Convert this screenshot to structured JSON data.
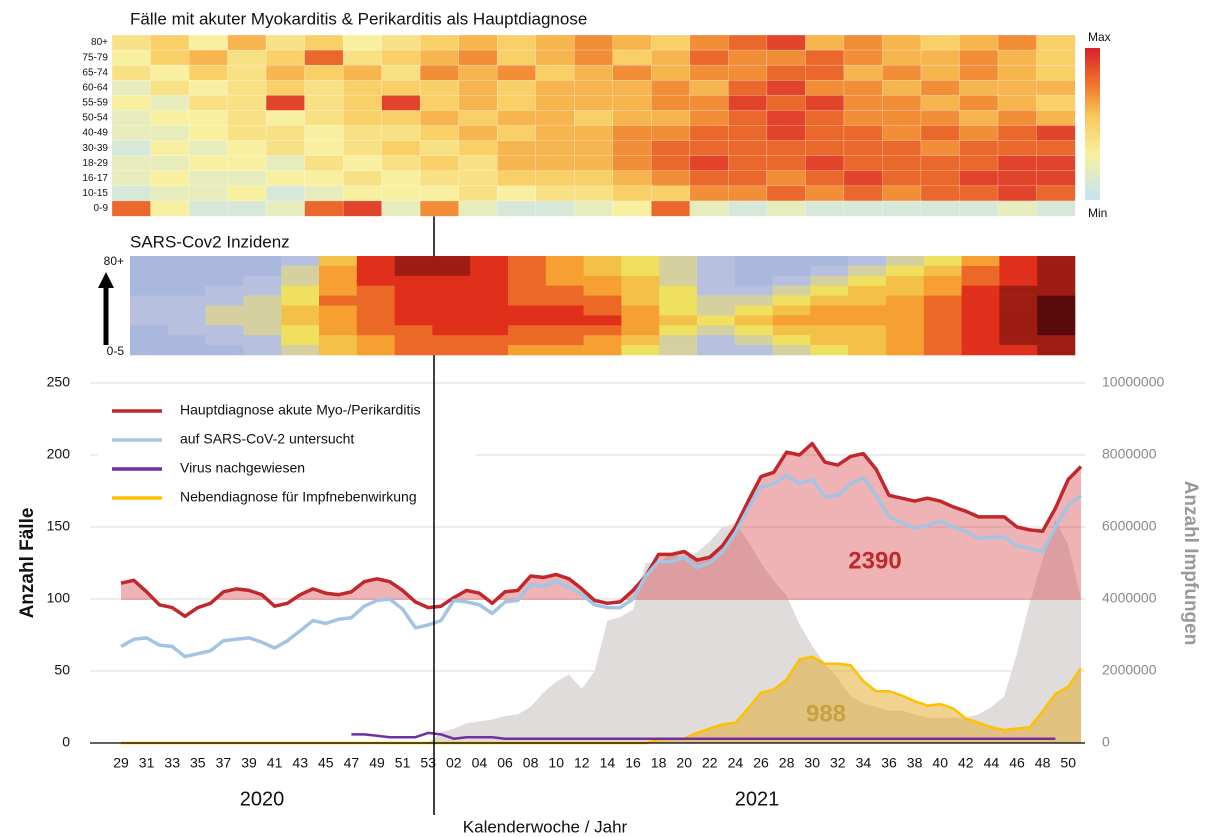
{
  "chart_data": [
    {
      "type": "heatmap",
      "title": "Fälle mit akuter Myokarditis & Perikarditis als Hauptdiagnose",
      "row_labels": [
        "80+",
        "75-79",
        "65-74",
        "60-64",
        "55-59",
        "50-54",
        "40-49",
        "30-39",
        "18-29",
        "16-17",
        "10-15",
        "0-9"
      ],
      "colorbar_labels": [
        "Max",
        "Min"
      ],
      "zlim": [
        0,
        10
      ],
      "values": [
        [
          4,
          5,
          3,
          6,
          4,
          5,
          3,
          4,
          5,
          6,
          5,
          6,
          7,
          6,
          5,
          7,
          8,
          9,
          6,
          7,
          6,
          5,
          6,
          7,
          5
        ],
        [
          3,
          5,
          6,
          4,
          5,
          8,
          4,
          5,
          6,
          7,
          5,
          6,
          7,
          5,
          6,
          8,
          7,
          7,
          8,
          7,
          6,
          6,
          7,
          6,
          5
        ],
        [
          4,
          3,
          5,
          4,
          6,
          5,
          6,
          4,
          7,
          6,
          7,
          5,
          6,
          7,
          6,
          7,
          7,
          8,
          8,
          6,
          7,
          6,
          7,
          6,
          5
        ],
        [
          2,
          4,
          3,
          4,
          5,
          4,
          5,
          5,
          5,
          6,
          5,
          6,
          6,
          6,
          7,
          6,
          8,
          9,
          7,
          7,
          6,
          7,
          6,
          6,
          6
        ],
        [
          3,
          2,
          4,
          4,
          9,
          4,
          5,
          9,
          5,
          6,
          5,
          6,
          6,
          6,
          7,
          7,
          9,
          8,
          9,
          7,
          7,
          6,
          7,
          6,
          5
        ],
        [
          2,
          3,
          3,
          4,
          3,
          4,
          5,
          5,
          6,
          5,
          6,
          6,
          5,
          6,
          6,
          7,
          8,
          9,
          8,
          7,
          7,
          7,
          6,
          7,
          6
        ],
        [
          2,
          2,
          3,
          4,
          4,
          3,
          4,
          4,
          5,
          6,
          5,
          6,
          6,
          7,
          7,
          8,
          8,
          9,
          8,
          8,
          7,
          8,
          7,
          8,
          9
        ],
        [
          1,
          3,
          2,
          3,
          4,
          3,
          4,
          5,
          4,
          5,
          6,
          6,
          6,
          7,
          8,
          8,
          8,
          8,
          8,
          8,
          8,
          7,
          8,
          8,
          8
        ],
        [
          2,
          2,
          3,
          3,
          2,
          4,
          3,
          4,
          5,
          4,
          6,
          6,
          6,
          7,
          8,
          9,
          8,
          8,
          9,
          8,
          8,
          8,
          8,
          9,
          9
        ],
        [
          2,
          3,
          2,
          2,
          3,
          3,
          4,
          3,
          4,
          4,
          5,
          5,
          5,
          6,
          7,
          8,
          8,
          7,
          8,
          9,
          8,
          8,
          9,
          9,
          9
        ],
        [
          1,
          2,
          2,
          3,
          1,
          2,
          3,
          3,
          3,
          4,
          3,
          4,
          4,
          5,
          5,
          7,
          7,
          8,
          7,
          8,
          7,
          8,
          8,
          9,
          8
        ],
        [
          8,
          3,
          1,
          1,
          2,
          8,
          9,
          2,
          7,
          2,
          1,
          1,
          2,
          3,
          8,
          2,
          1,
          2,
          1,
          1,
          1,
          1,
          1,
          2,
          1
        ]
      ]
    },
    {
      "type": "heatmap",
      "title": "SARS-Cov2 Inzidenz",
      "row_labels": [
        "80+",
        "0-5"
      ],
      "zlim": [
        0,
        10
      ],
      "values": [
        [
          1,
          1,
          1,
          1,
          2,
          5,
          8,
          9,
          9,
          8,
          7,
          6,
          5,
          4,
          3,
          2,
          1,
          1,
          1,
          2,
          3,
          4,
          6,
          8,
          9
        ],
        [
          1,
          1,
          1,
          1,
          3,
          6,
          8,
          9,
          9,
          8,
          7,
          6,
          5,
          4,
          3,
          2,
          1,
          1,
          2,
          3,
          4,
          5,
          7,
          8,
          9
        ],
        [
          1,
          1,
          1,
          2,
          3,
          6,
          8,
          8,
          8,
          8,
          7,
          6,
          6,
          5,
          3,
          2,
          1,
          2,
          3,
          4,
          5,
          6,
          7,
          8,
          9
        ],
        [
          1,
          1,
          2,
          2,
          4,
          6,
          7,
          8,
          8,
          8,
          7,
          7,
          6,
          5,
          4,
          2,
          2,
          3,
          4,
          5,
          5,
          6,
          8,
          9,
          9
        ],
        [
          2,
          2,
          2,
          3,
          4,
          7,
          7,
          8,
          8,
          8,
          7,
          7,
          7,
          5,
          4,
          3,
          3,
          4,
          5,
          5,
          6,
          7,
          8,
          9,
          10
        ],
        [
          2,
          2,
          3,
          3,
          5,
          6,
          7,
          8,
          8,
          8,
          8,
          8,
          7,
          6,
          4,
          3,
          4,
          5,
          6,
          6,
          6,
          7,
          8,
          9,
          10
        ],
        [
          2,
          2,
          3,
          3,
          5,
          6,
          7,
          8,
          8,
          8,
          8,
          8,
          8,
          6,
          5,
          4,
          5,
          6,
          6,
          6,
          6,
          7,
          8,
          9,
          10
        ],
        [
          1,
          2,
          2,
          3,
          4,
          6,
          7,
          7,
          8,
          8,
          7,
          7,
          7,
          6,
          4,
          3,
          4,
          5,
          5,
          5,
          6,
          7,
          8,
          9,
          10
        ],
        [
          1,
          1,
          2,
          2,
          4,
          5,
          6,
          7,
          7,
          7,
          7,
          7,
          6,
          5,
          3,
          2,
          3,
          4,
          5,
          5,
          6,
          7,
          8,
          9,
          9
        ],
        [
          1,
          1,
          1,
          2,
          3,
          5,
          6,
          7,
          7,
          7,
          6,
          6,
          6,
          4,
          3,
          2,
          2,
          3,
          4,
          5,
          6,
          7,
          8,
          8,
          9
        ]
      ]
    },
    {
      "type": "line",
      "ylabel": "Anzahl Fälle",
      "y2label": "Anzahl Impfungen",
      "xlabel": "Kalenderwoche / Jahr",
      "year_labels": [
        "2020",
        "2021"
      ],
      "ylim": [
        0,
        250
      ],
      "yticks": [
        0,
        50,
        100,
        150,
        200,
        250
      ],
      "y2lim": [
        0,
        10000000
      ],
      "y2ticks": [
        0,
        2000000,
        4000000,
        6000000,
        8000000,
        10000000
      ],
      "grid": true,
      "legend": "upper left",
      "categories": [
        "29",
        null,
        "31",
        null,
        "33",
        null,
        "35",
        null,
        "37",
        null,
        "39",
        null,
        "41",
        null,
        "43",
        null,
        "45",
        null,
        "47",
        null,
        "49",
        null,
        "51",
        null,
        "53",
        null,
        "02",
        null,
        "04",
        null,
        "06",
        null,
        "08",
        null,
        "10",
        null,
        "12",
        null,
        "14",
        null,
        "16",
        null,
        "18",
        null,
        "20",
        null,
        "22",
        null,
        "24",
        null,
        "26",
        null,
        "28",
        null,
        "30",
        null,
        "32",
        null,
        "34",
        null,
        "36",
        null,
        "38",
        null,
        "40",
        null,
        "42",
        null,
        "44",
        null,
        "46",
        null,
        "48",
        null,
        "50",
        null
      ],
      "annotations": [
        {
          "text": "2390",
          "series": 0
        },
        {
          "text": "988",
          "series": 3
        }
      ],
      "series": [
        {
          "name": "Hauptdiagnose akute Myo-/Perikarditis",
          "color": "#c0282d",
          "values": [
            111,
            113,
            105,
            96,
            94,
            88,
            94,
            97,
            105,
            107,
            106,
            103,
            95,
            97,
            103,
            107,
            104,
            103,
            105,
            112,
            114,
            112,
            106,
            98,
            94,
            95,
            101,
            106,
            104,
            97,
            105,
            106,
            116,
            115,
            117,
            114,
            107,
            99,
            97,
            98,
            106,
            116,
            131,
            131,
            133,
            127,
            129,
            137,
            150,
            168,
            185,
            188,
            202,
            200,
            208,
            195,
            193,
            199,
            201,
            190,
            172,
            170,
            168,
            170,
            168,
            164,
            161,
            157,
            157,
            157,
            150,
            148,
            147,
            163,
            183,
            192
          ]
        },
        {
          "name": "auf SARS-CoV-2 untersucht",
          "color": "#a4c4e4",
          "values": [
            67,
            72,
            73,
            68,
            67,
            60,
            62,
            64,
            71,
            72,
            73,
            70,
            66,
            71,
            78,
            85,
            83,
            86,
            87,
            95,
            99,
            100,
            93,
            80,
            82,
            85,
            99,
            98,
            96,
            90,
            98,
            99,
            110,
            109,
            112,
            108,
            103,
            96,
            94,
            94,
            100,
            116,
            126,
            126,
            129,
            122,
            125,
            133,
            146,
            163,
            178,
            180,
            186,
            180,
            183,
            171,
            172,
            180,
            184,
            172,
            157,
            153,
            149,
            151,
            154,
            150,
            147,
            142,
            143,
            143,
            137,
            135,
            133,
            150,
            165,
            172
          ]
        },
        {
          "name": "Virus nachgewiesen",
          "color": "#7030a0",
          "values": [
            null,
            null,
            null,
            null,
            null,
            null,
            null,
            null,
            null,
            null,
            null,
            null,
            null,
            null,
            null,
            null,
            null,
            null,
            6,
            6,
            5,
            4,
            4,
            4,
            7,
            6,
            3,
            4,
            4,
            4,
            3,
            3,
            3,
            3,
            3,
            3,
            3,
            3,
            3,
            3,
            3,
            3,
            3,
            3,
            3,
            3,
            3,
            3,
            3,
            3,
            3,
            3,
            3,
            3,
            3,
            3,
            3,
            3,
            3,
            3,
            3,
            3,
            3,
            3,
            3,
            3,
            3,
            3,
            3,
            3,
            3,
            3,
            3,
            3,
            null,
            null
          ]
        },
        {
          "name": "Nebendiagnose für Impfnebenwirkung",
          "color": "#ffc000",
          "values": [
            0,
            0,
            0,
            0,
            0,
            0,
            0,
            0,
            0,
            0,
            0,
            0,
            0,
            0,
            0,
            0,
            0,
            0,
            0,
            0,
            0,
            0,
            0,
            0,
            0,
            0,
            0,
            0,
            0,
            0,
            0,
            0,
            0,
            0,
            0,
            0,
            0,
            0,
            0,
            0,
            0,
            0,
            2,
            3,
            3,
            7,
            10,
            13,
            14,
            24,
            35,
            37,
            44,
            58,
            60,
            55,
            55,
            54,
            43,
            36,
            36,
            33,
            29,
            26,
            27,
            24,
            17,
            14,
            11,
            9,
            10,
            11,
            22,
            34,
            39,
            52
          ]
        },
        {
          "name": "Anzahl Impfungen",
          "color": "#e0dcdc",
          "axis": "y2",
          "values": [
            0,
            0,
            0,
            0,
            0,
            0,
            0,
            0,
            0,
            0,
            0,
            0,
            0,
            0,
            0,
            0,
            0,
            0,
            0,
            0,
            0,
            0,
            0,
            0,
            0,
            300000,
            400000,
            550000,
            600000,
            650000,
            750000,
            800000,
            1000000,
            1400000,
            1700000,
            1900000,
            1500000,
            2000000,
            3400000,
            3500000,
            3700000,
            5000000,
            5000000,
            5300000,
            5100000,
            5300000,
            5600000,
            6000000,
            6100000,
            5600000,
            5000000,
            4500000,
            4100000,
            3300000,
            2700000,
            2200000,
            1800000,
            1300000,
            1100000,
            1000000,
            900000,
            900000,
            800000,
            700000,
            700000,
            700000,
            700000,
            800000,
            1000000,
            1300000,
            2500000,
            3900000,
            5100000,
            6200000,
            5500000,
            4000000
          ]
        }
      ]
    }
  ]
}
